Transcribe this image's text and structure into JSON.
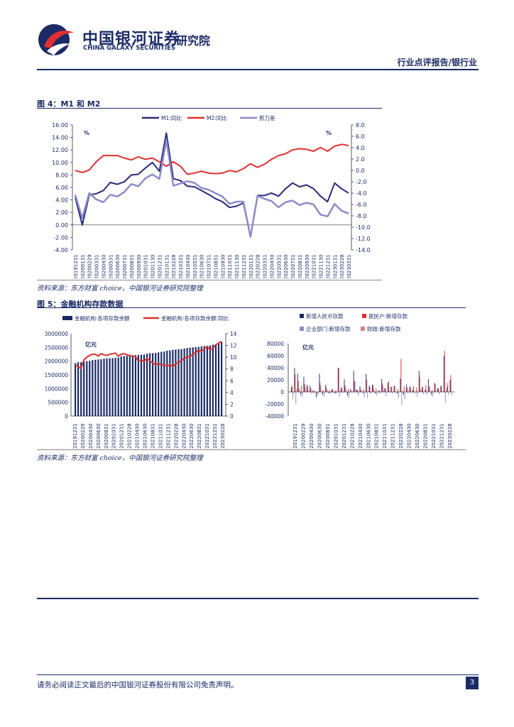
{
  "header": {
    "company_cn": "中国银河证券",
    "company_en": "CHINA GALAXY SECURITIES",
    "institute": "研究院",
    "report_type": "行业点评报告/银行业"
  },
  "colors": {
    "navy": "#1b2b66",
    "red": "#e03030",
    "lavender": "#8c8cc8",
    "dark_navy": "#2a2a7a"
  },
  "fig4": {
    "title": "图 4：M1 和 M2",
    "source": "资料来源：东方财富 choice，中国银河证券研究院整理",
    "unit_left": "%",
    "unit_right": "%",
    "legend": [
      "M1:同比",
      "M2:同比",
      "剪刀差"
    ],
    "left_ticks": [
      "16.00",
      "14.00",
      "12.00",
      "10.00",
      "8.00",
      "6.00",
      "4.00",
      "2.00",
      "0.00",
      "-2.00",
      "-4.00"
    ],
    "right_ticks": [
      "8.0",
      "6.0",
      "4.0",
      "2.0",
      "0.0",
      "-2.0",
      "-4.0",
      "-6.0",
      "-8.0",
      "-10.0",
      "-12.0",
      "-14.0"
    ],
    "x_labels": [
      "20191231",
      "20200131",
      "20200229",
      "20200331",
      "20200430",
      "20200531",
      "20200630",
      "20200731",
      "20200831",
      "20200930",
      "20201031",
      "20201130",
      "20201231",
      "20210131",
      "20210228",
      "20210331",
      "20210430",
      "20210531",
      "20210630",
      "20210731",
      "20210831",
      "20210930",
      "20211031",
      "20211130",
      "20211231",
      "20220131",
      "20220228",
      "20220331",
      "20220430",
      "20220531",
      "20220630",
      "20220731",
      "20220831",
      "20220930",
      "20221031",
      "20221130",
      "20221231",
      "20230131",
      "20230228",
      "20230331"
    ]
  },
  "fig5": {
    "title": "图 5：金融机构存款数据",
    "source": "资料来源：东方财富 choice，中国银河证券研究院整理",
    "left": {
      "legend": [
        "金融机构:各项存款余额",
        "金融机构:各项存款余额:同比"
      ],
      "unit": "亿元",
      "left_ticks": [
        "3000000",
        "2500000",
        "2000000",
        "1500000",
        "1000000",
        "500000",
        "0"
      ],
      "right_ticks": [
        "14",
        "12",
        "10",
        "8",
        "6",
        "4",
        "2",
        "0"
      ],
      "x_labels": [
        "20191231",
        "20200229",
        "20200430",
        "20200630",
        "20200831",
        "20201031",
        "20201231",
        "20210228",
        "20210430",
        "20210630",
        "20210831",
        "20211031",
        "20211231",
        "20220228",
        "20220430",
        "20220630",
        "20220831",
        "20221031",
        "20221231",
        "20230228"
      ]
    },
    "right": {
      "legend": [
        "新增人民币存款",
        "居民户:新增存款",
        "企业部门:新增存款",
        "财政:新增存款"
      ],
      "unit": "亿元",
      "y_ticks": [
        "80000",
        "60000",
        "40000",
        "20000",
        "0",
        "-20000",
        "-40000"
      ],
      "x_labels": [
        "20191231",
        "20200229",
        "20200430",
        "20200630",
        "20200831",
        "20201031",
        "20201231",
        "20210228",
        "20210430",
        "20210630",
        "20210831",
        "20211031",
        "20211231",
        "20220228",
        "20220430",
        "20220630",
        "20220831",
        "20221031",
        "20221231",
        "20230228"
      ]
    }
  },
  "chart_data": [
    {
      "type": "line",
      "title": "图 4：M1 和 M2",
      "series": [
        {
          "name": "M1:同比",
          "axis": "left",
          "values": [
            4.4,
            0.0,
            4.8,
            5.0,
            5.5,
            6.8,
            6.5,
            6.9,
            8.0,
            8.1,
            9.1,
            10.0,
            8.6,
            14.7,
            7.4,
            7.1,
            6.2,
            6.1,
            5.5,
            4.9,
            4.2,
            3.7,
            2.8,
            3.0,
            3.5,
            -1.9,
            4.7,
            4.7,
            5.1,
            4.6,
            5.8,
            6.7,
            6.1,
            6.4,
            5.8,
            4.6,
            3.7,
            6.7,
            5.8,
            5.1
          ]
        },
        {
          "name": "M2:同比",
          "axis": "left",
          "values": [
            8.7,
            8.4,
            8.8,
            10.1,
            11.1,
            11.1,
            11.1,
            10.7,
            10.4,
            10.9,
            10.5,
            10.7,
            10.1,
            9.4,
            10.1,
            9.4,
            8.1,
            8.3,
            8.6,
            8.3,
            8.2,
            8.3,
            8.7,
            8.5,
            9.0,
            9.8,
            9.2,
            9.7,
            10.5,
            11.1,
            11.4,
            12.0,
            12.2,
            12.1,
            11.8,
            12.4,
            11.8,
            12.6,
            12.9,
            12.7
          ]
        },
        {
          "name": "剪刀差",
          "axis": "right",
          "values": [
            -4.3,
            -8.4,
            -4.0,
            -5.1,
            -5.6,
            -4.3,
            -4.6,
            -3.8,
            -2.4,
            -2.8,
            -1.4,
            -0.7,
            -1.5,
            5.3,
            -2.7,
            -2.3,
            -1.9,
            -2.2,
            -3.1,
            -3.4,
            -4.0,
            -4.6,
            -5.9,
            -5.5,
            -5.5,
            -11.7,
            -4.5,
            -5.0,
            -5.4,
            -6.5,
            -5.6,
            -5.3,
            -6.1,
            -5.7,
            -6.0,
            -7.8,
            -8.1,
            -5.9,
            -7.1,
            -7.6
          ]
        }
      ],
      "ylim_left": [
        -4,
        16
      ],
      "ylim_right": [
        -14,
        8
      ]
    },
    {
      "type": "bar",
      "title": "金融机构:各项存款余额 / 同比",
      "series": [
        {
          "name": "金融机构:各项存款余额",
          "axis": "left",
          "values": [
            1930000,
            1960000,
            1960000,
            1990000,
            2000000,
            2010000,
            2040000,
            2050000,
            2060000,
            2070000,
            2090000,
            2100000,
            2100000,
            2110000,
            2120000,
            2130000,
            2170000,
            2180000,
            2190000,
            2200000,
            2210000,
            2220000,
            2230000,
            2230000,
            2240000,
            2270000,
            2290000,
            2290000,
            2300000,
            2320000,
            2340000,
            2350000,
            2380000,
            2390000,
            2410000,
            2420000,
            2430000,
            2440000,
            2460000,
            2480000,
            2490000,
            2500000,
            2510000,
            2520000,
            2540000,
            2550000,
            2560000,
            2570000,
            2600000,
            2620000,
            2680000,
            2700000
          ]
        },
        {
          "name": "金融机构:各项存款余额:同比",
          "axis": "right",
          "values": [
            8.7,
            8.4,
            8.1,
            9.5,
            10.0,
            10.3,
            10.5,
            10.5,
            10.2,
            10.6,
            10.4,
            10.3,
            10.5,
            10.6,
            10.7,
            10.2,
            10.5,
            10.6,
            10.4,
            10.3,
            10.2,
            10.1,
            9.4,
            9.5,
            9.3,
            9.8,
            9.4,
            9.0,
            8.7,
            8.9,
            8.8,
            8.6,
            8.5,
            8.7,
            8.4,
            8.9,
            9.1,
            9.4,
            9.8,
            10.0,
            10.1,
            10.5,
            10.8,
            11.2,
            11.0,
            11.4,
            11.8,
            11.3,
            11.5,
            12.1,
            12.4,
            12.7
          ]
        }
      ],
      "ylim_left": [
        0,
        3000000
      ],
      "ylim_right": [
        0,
        14
      ]
    },
    {
      "type": "bar",
      "title": "新增存款",
      "series": [
        {
          "name": "新增人民币存款",
          "values": [
            8000,
            40000,
            30000,
            -5000,
            25000,
            12000,
            10000,
            2000,
            -9000,
            30000,
            -5000,
            12000,
            -2000,
            4000,
            -3000,
            40000,
            8000,
            21000,
            -6000,
            5000,
            35000,
            4000,
            9000,
            -2000,
            30000,
            10000,
            12000,
            -3000,
            2000,
            21000,
            6000,
            15000,
            8000,
            10000,
            -3000,
            22000,
            -5000,
            12000,
            9000,
            4000,
            -1000,
            35000,
            8000,
            4000,
            21000,
            -5000,
            15000,
            6000,
            10000,
            60000,
            8000,
            20000
          ]
        },
        {
          "name": "居民户:新增存款",
          "values": [
            10000,
            30000,
            18000,
            10000,
            13000,
            8000,
            6000,
            -2000,
            -1000,
            15000,
            2000,
            7000,
            3000,
            5000,
            3000,
            40000,
            6000,
            11000,
            5000,
            2000,
            18000,
            3000,
            4000,
            5000,
            20000,
            8000,
            11000,
            6000,
            3000,
            14000,
            6000,
            18000,
            9000,
            10000,
            5000,
            55000,
            9000,
            7000,
            7000,
            9000,
            7000,
            25000,
            8000,
            11000,
            8000,
            4000,
            13000,
            6000,
            9000,
            68000,
            15000,
            28000
          ]
        },
        {
          "name": "企业部门:新增存款",
          "values": [
            -12000,
            -20000,
            5000,
            -8000,
            8000,
            2000,
            -3000,
            3000,
            -6000,
            10000,
            -8000,
            4000,
            -3000,
            -2000,
            -3000,
            -8000,
            -2000,
            7000,
            -10000,
            1000,
            18000,
            -6000,
            3000,
            -9000,
            -10000,
            -4000,
            5000,
            -6000,
            -3000,
            10000,
            -7000,
            3000,
            -4000,
            -2000,
            -10000,
            -22000,
            -12000,
            -3000,
            -2000,
            -4000,
            -8000,
            4000,
            -4000,
            -5000,
            10000,
            -8000,
            2000,
            -4000,
            1000,
            -18000,
            -5000,
            -6000
          ]
        },
        {
          "name": "财政:新增存款",
          "values": [
            -3000,
            5000,
            4000,
            -2000,
            3000,
            2000,
            4000,
            -1000,
            -3000,
            4000,
            -2000,
            2000,
            -2000,
            1000,
            -1000,
            3000,
            -1000,
            3000,
            -2000,
            1000,
            3000,
            -1000,
            2000,
            -2000,
            2000,
            1000,
            2000,
            -1000,
            -1000,
            2000,
            -1000,
            1000,
            -1000,
            1000,
            -1000,
            3000,
            -1000,
            2000,
            1000,
            1000,
            -1000,
            3000,
            1000,
            -1000,
            2000,
            -1000,
            1000,
            -1000,
            1000,
            2000,
            1000,
            1000
          ]
        }
      ],
      "ylim": [
        -40000,
        80000
      ]
    }
  ],
  "footer": {
    "disclaimer": "请务必阅读正文最后的中国银河证券股份有限公司免责声明。",
    "page": "3"
  }
}
